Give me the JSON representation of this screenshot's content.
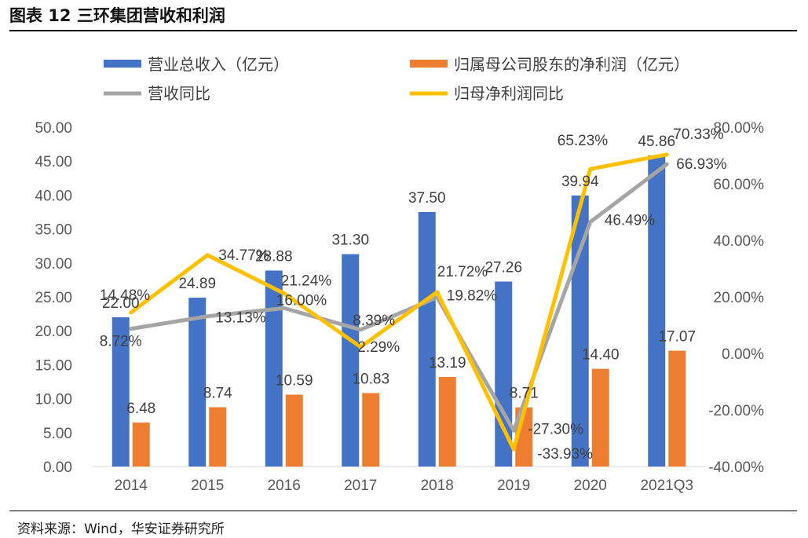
{
  "figure": {
    "title": "图表 12 三环集团营收和利润",
    "source": "资料来源：Wind，华安证券研究所"
  },
  "chart_data": {
    "type": "bar",
    "title": "三环集团营收和利润",
    "categories": [
      "2014",
      "2015",
      "2016",
      "2017",
      "2018",
      "2019",
      "2020",
      "2021Q3"
    ],
    "y_left": {
      "ylim": [
        0,
        50
      ],
      "ticks": [
        "0.00",
        "5.00",
        "10.00",
        "15.00",
        "20.00",
        "25.00",
        "30.00",
        "35.00",
        "40.00",
        "45.00",
        "50.00"
      ]
    },
    "y_right": {
      "ylim": [
        -40,
        80
      ],
      "ticks": [
        "-40.00%",
        "-20.00%",
        "0.00%",
        "20.00%",
        "40.00%",
        "60.00%",
        "80.00%"
      ]
    },
    "series": [
      {
        "name": "营业总收入（亿元）",
        "type": "bar",
        "axis": "left",
        "color": "#4472C4",
        "values": [
          22.0,
          24.89,
          28.88,
          31.3,
          37.5,
          27.26,
          39.94,
          45.86
        ],
        "labels": [
          "22.00",
          "24.89",
          "28.88",
          "31.30",
          "37.50",
          "27.26",
          "39.94",
          "45.86"
        ]
      },
      {
        "name": "归属母公司股东的净利润（亿元）",
        "type": "bar",
        "axis": "left",
        "color": "#ED7D31",
        "values": [
          6.48,
          8.74,
          10.59,
          10.83,
          13.19,
          8.71,
          14.4,
          17.07
        ],
        "labels": [
          "6.48",
          "8.74",
          "10.59",
          "10.83",
          "13.19",
          "8.71",
          "14.40",
          "17.07"
        ]
      },
      {
        "name": "营收同比",
        "type": "line",
        "axis": "right",
        "color": "#A5A5A5",
        "values": [
          8.72,
          13.13,
          16.0,
          8.39,
          19.82,
          -27.3,
          46.49,
          66.93
        ],
        "labels": [
          "8.72%",
          "13.13%",
          "16.00%",
          "8.39%",
          "19.82%",
          "-27.30%",
          "46.49%",
          "66.93%"
        ]
      },
      {
        "name": "归母净利润同比",
        "type": "line",
        "axis": "right",
        "color": "#FFC000",
        "values": [
          14.48,
          34.77,
          21.24,
          2.29,
          21.72,
          -33.93,
          65.23,
          70.33
        ],
        "labels": [
          "14.48%",
          "34.77%",
          "21.24%",
          "2.29%",
          "21.72%",
          "-33.93%",
          "65.23%",
          "70.33%"
        ]
      }
    ],
    "legend": "top"
  }
}
